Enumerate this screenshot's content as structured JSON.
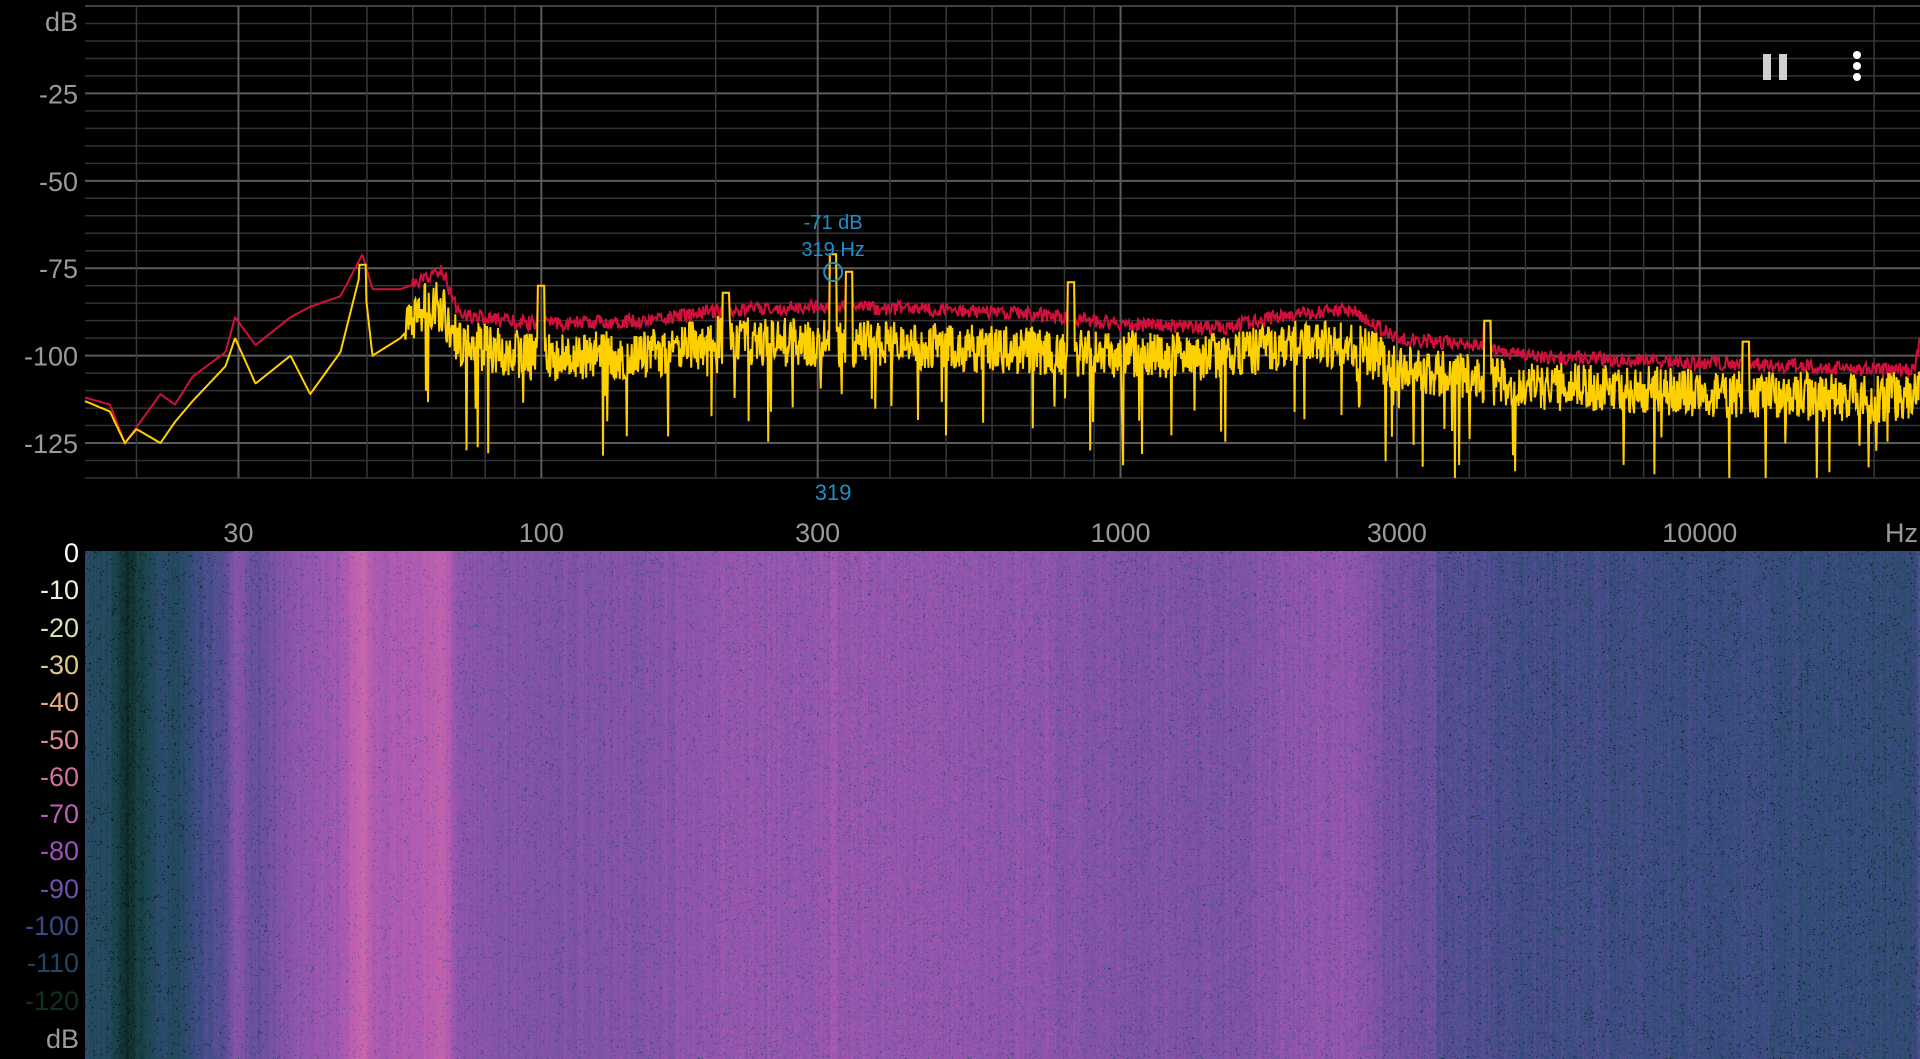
{
  "toolbar": {
    "pause_icon": "pause-icon",
    "menu_icon": "more-vert-icon"
  },
  "chart_data": [
    {
      "type": "line",
      "ylabel": "dB",
      "xlabel": "Hz",
      "xscale": "log",
      "xlim": [
        16.3,
        24000
      ],
      "ylim": [
        -135,
        0
      ],
      "yticks": [
        -25,
        -50,
        -75,
        -100,
        -125
      ],
      "xticks": [
        30,
        100,
        300,
        1000,
        3000,
        10000
      ],
      "grid": true,
      "cursor": {
        "freq": 319,
        "db_label": "-71 dB",
        "hz_label": "319 Hz",
        "axis_label": "319",
        "color": "#1e90c8"
      },
      "series": [
        {
          "role": "peak-hold",
          "color": "#d0103a",
          "x": [
            16.3,
            18,
            19.1,
            19.9,
            22,
            23.3,
            25,
            28.5,
            29.6,
            32.1,
            36.9,
            39.9,
            45,
            49.1,
            51.1,
            57.1,
            64,
            67.3,
            72,
            85,
            100,
            150,
            208,
            319,
            500,
            700,
            1000,
            1500,
            2000,
            2500,
            3000,
            4000,
            5000,
            7000,
            10000,
            15000,
            20000,
            23500,
            24000
          ],
          "y": [
            -112,
            -114,
            -125,
            -121,
            -111,
            -114,
            -106,
            -99,
            -89,
            -97,
            -89,
            -86,
            -83,
            -71,
            -81,
            -81,
            -78,
            -75,
            -88,
            -90,
            -91,
            -90,
            -87,
            -86,
            -87,
            -88,
            -91,
            -92,
            -88,
            -87,
            -95,
            -97,
            -100,
            -101,
            -102,
            -103,
            -104,
            -104,
            -96
          ]
        },
        {
          "role": "current",
          "color": "#ffd000",
          "x": [
            16.3,
            18,
            19.1,
            20,
            22,
            23.3,
            25,
            28.5,
            29.6,
            32.1,
            36.9,
            39.9,
            45,
            49.1,
            51.1,
            57.1,
            64,
            67.3,
            72,
            85,
            100,
            150,
            208,
            319,
            500,
            700,
            1000,
            1500,
            2000,
            2500,
            3000,
            4000,
            5000,
            7000,
            10000,
            15000,
            20000,
            24000
          ],
          "y": [
            -113,
            -116,
            -125,
            -121,
            -125,
            -119,
            -113,
            -103,
            -95,
            -108,
            -100,
            -111,
            -99,
            -74,
            -100,
            -95,
            -86,
            -88,
            -98,
            -100,
            -102,
            -101,
            -97,
            -98,
            -99,
            -100,
            -101,
            -102,
            -98,
            -98,
            -105,
            -108,
            -110,
            -111,
            -112,
            -113,
            -114,
            -112
          ]
        }
      ],
      "peaks": [
        {
          "freq": 49.1,
          "db": -74
        },
        {
          "freq": 100,
          "db": -80
        },
        {
          "freq": 208,
          "db": -82
        },
        {
          "freq": 319,
          "db": -71
        },
        {
          "freq": 340,
          "db": -76
        },
        {
          "freq": 820,
          "db": -79
        },
        {
          "freq": 4300,
          "db": -90
        },
        {
          "freq": 12000,
          "db": -96
        }
      ]
    },
    {
      "type": "heatmap",
      "colorbar": {
        "labels": [
          "0",
          "-10",
          "-20",
          "-30",
          "-40",
          "-50",
          "-60",
          "-70",
          "-80",
          "-90",
          "-100",
          "-110",
          "-120"
        ],
        "label_colors": [
          "#ffffff",
          "#e8f2d6",
          "#d8e0b0",
          "#e0c890",
          "#e8a880",
          "#e08890",
          "#d070a0",
          "#c060b8",
          "#a050b8",
          "#7050a8",
          "#3a4a88",
          "#1f4860",
          "#0f3028"
        ],
        "unit": "dB",
        "range": [
          -130,
          0
        ]
      }
    }
  ]
}
